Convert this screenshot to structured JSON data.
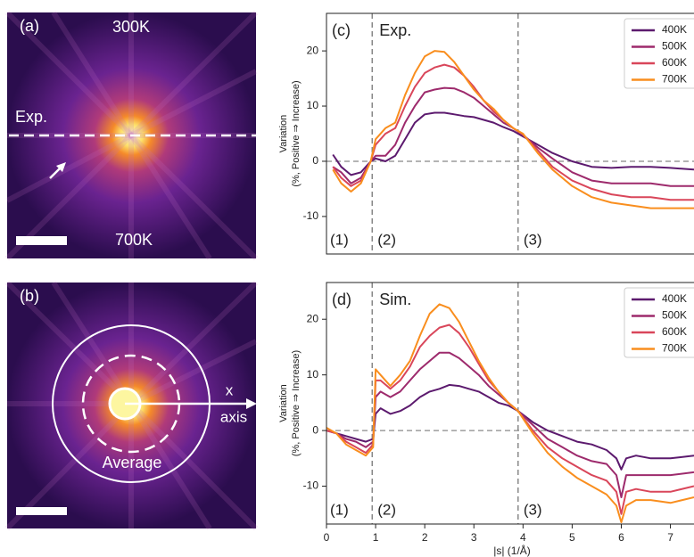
{
  "panels": {
    "a": {
      "label": "(a)",
      "top_label": "300K",
      "line_label": "Exp.",
      "bottom_label": "700K"
    },
    "b": {
      "label": "(b)",
      "axis_label": [
        "x",
        "axis"
      ],
      "ring_label": "Average"
    }
  },
  "chart_data": [
    {
      "type": "line",
      "label": "(c)",
      "tag": "Exp.",
      "y_label": [
        "Variation",
        "(%, Positive ⇒ Increase)"
      ],
      "x": [
        0.13,
        0.3,
        0.5,
        0.7,
        0.9,
        1.0,
        1.2,
        1.4,
        1.6,
        1.8,
        2.0,
        2.2,
        2.4,
        2.6,
        2.8,
        3.0,
        3.2,
        3.4,
        3.6,
        3.8,
        4.0,
        4.3,
        4.6,
        5.0,
        5.4,
        5.8,
        6.2,
        6.6,
        7.0,
        7.48
      ],
      "series": [
        {
          "name": "400K",
          "color": "#5c1a6e",
          "values": [
            1.2,
            -1,
            -2.5,
            -2,
            0,
            0.5,
            0,
            1,
            4,
            7,
            8.5,
            8.8,
            8.8,
            8.5,
            8.2,
            8,
            7.5,
            7,
            6.2,
            5.5,
            4.5,
            3,
            1.5,
            0,
            -1,
            -1.2,
            -1,
            -1,
            -1.2,
            -1.5
          ]
        },
        {
          "name": "500K",
          "color": "#9d2a6c",
          "values": [
            -1,
            -2,
            -4,
            -3,
            0,
            1,
            1,
            3,
            7,
            10,
            12.5,
            13,
            13.3,
            13.2,
            12.5,
            11.5,
            10,
            8.5,
            7,
            6,
            4.8,
            2.5,
            0.5,
            -2,
            -3.5,
            -4,
            -4,
            -4,
            -4.5,
            -4.5
          ]
        },
        {
          "name": "600K",
          "color": "#d9465a",
          "values": [
            -1,
            -3,
            -4.5,
            -3.5,
            0,
            3,
            5,
            6,
            10,
            13.5,
            16,
            17,
            17.5,
            17,
            15.5,
            13.5,
            11,
            9,
            7.5,
            6,
            4.8,
            2,
            -1,
            -3.5,
            -5,
            -6,
            -6.5,
            -6.5,
            -7,
            -7
          ]
        },
        {
          "name": "700K",
          "color": "#f98e1e",
          "values": [
            -1.5,
            -4,
            -5.5,
            -4,
            0,
            4,
            6,
            7,
            12,
            16,
            19,
            20,
            19.8,
            18,
            15.5,
            13,
            11,
            9.5,
            7.5,
            6,
            5,
            1.5,
            -1.5,
            -4.5,
            -6.5,
            -7.5,
            -8,
            -8.5,
            -8.5,
            -8.5
          ]
        }
      ],
      "xlim": [
        0,
        7.48
      ],
      "ylim": [
        -16.8,
        26.8
      ],
      "yticks": [
        -10,
        0,
        10,
        20
      ],
      "regions": [
        "(1)",
        "(2)",
        "(3)"
      ],
      "region_boundaries": [
        0.93,
        3.9
      ],
      "reference_line": 0,
      "legend": "upper right"
    },
    {
      "type": "line",
      "label": "(d)",
      "tag": "Sim.",
      "y_label": [
        "Variation",
        "(%, Positive ⇒ Increase)"
      ],
      "x_label": "|s| (1/Å)",
      "x": [
        0,
        0.2,
        0.4,
        0.6,
        0.8,
        0.95,
        1.0,
        1.1,
        1.3,
        1.5,
        1.7,
        1.9,
        2.1,
        2.3,
        2.5,
        2.7,
        2.9,
        3.1,
        3.3,
        3.5,
        3.7,
        3.9,
        4.2,
        4.5,
        4.8,
        5.1,
        5.4,
        5.7,
        5.9,
        6.0,
        6.1,
        6.3,
        6.6,
        7.0,
        7.48
      ],
      "series": [
        {
          "name": "400K",
          "color": "#5c1a6e",
          "values": [
            0,
            -0.5,
            -1,
            -1.5,
            -2,
            -1.5,
            3,
            4,
            3,
            3.5,
            4.5,
            6,
            7,
            7.5,
            8.2,
            8,
            7.5,
            7,
            6,
            5,
            4.5,
            3.5,
            1.5,
            0,
            -1,
            -2,
            -2.5,
            -3.5,
            -5,
            -7,
            -5,
            -4.5,
            -5,
            -5,
            -4.5
          ]
        },
        {
          "name": "500K",
          "color": "#9d2a6c",
          "values": [
            0,
            -0.5,
            -1.5,
            -2,
            -3,
            -2,
            6,
            7,
            6,
            7,
            9,
            11,
            12.5,
            14,
            14,
            13,
            11.5,
            10,
            8,
            6.5,
            5,
            3.5,
            1,
            -1.5,
            -3,
            -4.5,
            -5.5,
            -6,
            -8,
            -12,
            -8,
            -8,
            -8,
            -8,
            -7.5
          ]
        },
        {
          "name": "600K",
          "color": "#d9465a",
          "values": [
            0,
            -0.5,
            -2,
            -3,
            -4,
            -2.5,
            9,
            9,
            7.5,
            9,
            11.5,
            15,
            17,
            18.5,
            19,
            17.5,
            15,
            12,
            9,
            7,
            5,
            3.5,
            0,
            -3,
            -5,
            -6.5,
            -8,
            -9,
            -11,
            -15,
            -11,
            -10.5,
            -11,
            -11,
            -10
          ]
        },
        {
          "name": "700K",
          "color": "#f98e1e",
          "values": [
            0.5,
            -0.5,
            -2.5,
            -3.5,
            -4.5,
            -3,
            11,
            10,
            8,
            10,
            12.5,
            17,
            21,
            22.7,
            22,
            19.5,
            16,
            12.5,
            9.5,
            7,
            5,
            3.5,
            -0.5,
            -4,
            -6.5,
            -8.5,
            -10,
            -11.5,
            -13.5,
            -16.5,
            -13.5,
            -12.5,
            -12.5,
            -13,
            -12
          ]
        }
      ],
      "xlim": [
        0,
        7.48
      ],
      "ylim": [
        -16.8,
        26.6
      ],
      "yticks": [
        -10,
        0,
        10,
        20
      ],
      "xticks": [
        0,
        1,
        2,
        3,
        4,
        5,
        6,
        7
      ],
      "regions": [
        "(1)",
        "(2)",
        "(3)"
      ],
      "region_boundaries": [
        0.93,
        3.9
      ],
      "reference_line": 0,
      "legend": "upper right"
    }
  ]
}
